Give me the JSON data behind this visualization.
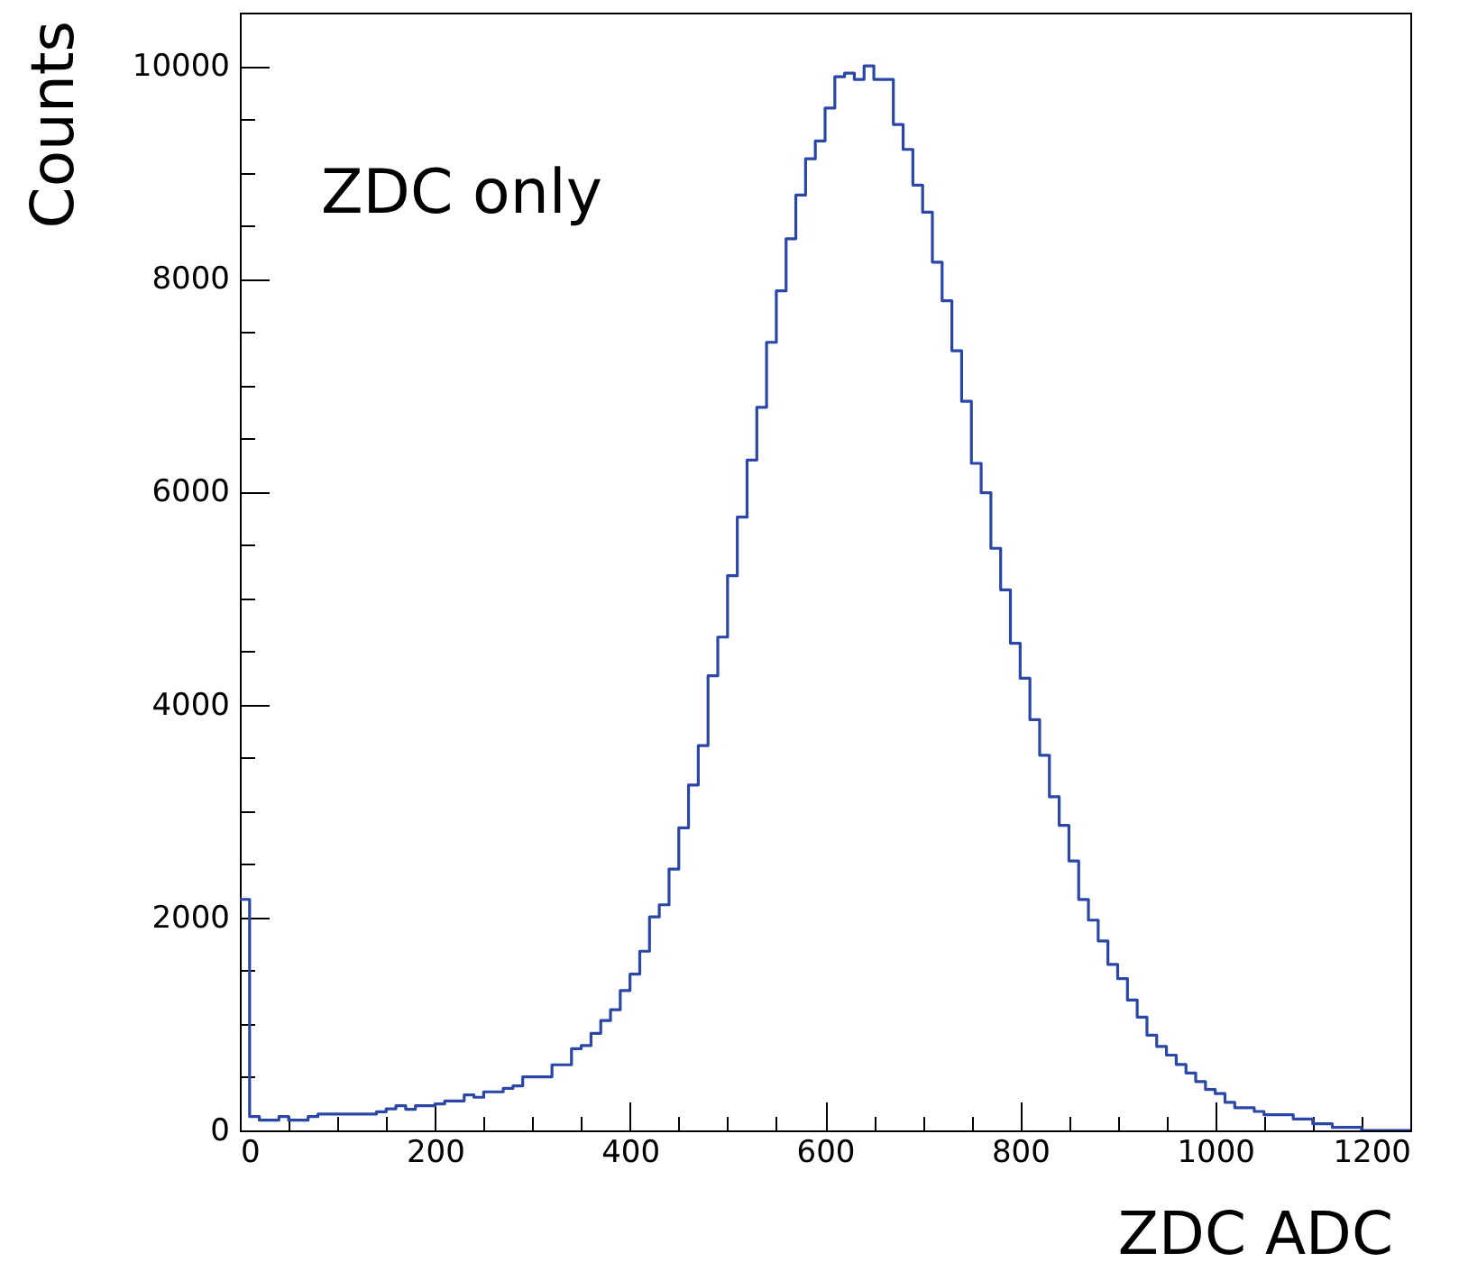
{
  "chart_data": {
    "type": "histogram",
    "xlabel": "ZDC ADC",
    "ylabel": "Counts",
    "annotations": [
      "ZDC only"
    ],
    "color": "#2a47a8",
    "bins": [
      0,
      10,
      20,
      30,
      40,
      50,
      60,
      70,
      80,
      90,
      100,
      110,
      120,
      130,
      140,
      150,
      160,
      170,
      180,
      190,
      200,
      210,
      220,
      230,
      240,
      250,
      260,
      270,
      280,
      290,
      300,
      310,
      320,
      330,
      340,
      350,
      360,
      370,
      380,
      390,
      400,
      410,
      420,
      430,
      440,
      450,
      460,
      470,
      480,
      490,
      500,
      510,
      520,
      530,
      540,
      550,
      560,
      570,
      580,
      590,
      600,
      610,
      620,
      630,
      640,
      650,
      660,
      670,
      680,
      690,
      700,
      710,
      720,
      730,
      740,
      750,
      760,
      770,
      780,
      790,
      800,
      810,
      820,
      830,
      840,
      850,
      860,
      870,
      880,
      890,
      900,
      910,
      920,
      930,
      940,
      950,
      960,
      970,
      980,
      990,
      1000,
      1010,
      1020,
      1030,
      1040,
      1050,
      1060,
      1070,
      1080,
      1090,
      1100,
      1110,
      1120,
      1130,
      1140,
      1150,
      1160,
      1170,
      1180,
      1190,
      1200
    ],
    "values": [
      2170,
      130,
      96,
      96,
      130,
      96,
      96,
      130,
      153,
      153,
      153,
      153,
      153,
      153,
      175,
      203,
      232,
      198,
      232,
      232,
      249,
      277,
      277,
      333,
      311,
      362,
      362,
      395,
      418,
      503,
      503,
      503,
      616,
      616,
      768,
      797,
      912,
      1032,
      1133,
      1314,
      1468,
      1683,
      2005,
      2119,
      2454,
      2842,
      3245,
      3615,
      4271,
      4634,
      5210,
      5761,
      6297,
      6793,
      7403,
      7886,
      8376,
      8786,
      9127,
      9295,
      9603,
      9898,
      9932,
      9873,
      10000,
      9873,
      9873,
      9449,
      9215,
      8880,
      8625,
      8156,
      7793,
      7324,
      6849,
      6266,
      5990,
      5468,
      5078,
      4576,
      4247,
      3858,
      3524,
      3134,
      2866,
      2531,
      2169,
      1975,
      1780,
      1559,
      1425,
      1224,
      1063,
      895,
      788,
      707,
      620,
      539,
      459,
      385,
      346,
      264,
      212,
      212,
      178,
      147,
      147,
      147,
      107,
      107,
      62,
      62,
      28,
      28,
      28,
      0,
      0,
      0,
      0,
      0
    ],
    "xlim": [
      0,
      1200
    ],
    "ylim": [
      0,
      10500
    ],
    "xticks": [
      0,
      {
        "value": 50,
        "label": null
      },
      {
        "value": 100,
        "label": null
      },
      {
        "value": 150,
        "label": null
      },
      200,
      {
        "value": 250,
        "label": null
      },
      {
        "value": 300,
        "label": null
      },
      {
        "value": 350,
        "label": null
      },
      400,
      {
        "value": 450,
        "label": null
      },
      {
        "value": 500,
        "label": null
      },
      {
        "value": 550,
        "label": null
      },
      600,
      {
        "value": 650,
        "label": null
      },
      {
        "value": 700,
        "label": null
      },
      {
        "value": 750,
        "label": null
      },
      800,
      {
        "value": 850,
        "label": null
      },
      {
        "value": 900,
        "label": null
      },
      {
        "value": 950,
        "label": null
      },
      1000,
      {
        "value": 1050,
        "label": null
      },
      {
        "value": 1100,
        "label": null
      },
      {
        "value": 1150,
        "label": null
      },
      1200
    ],
    "yticks": [
      0,
      {
        "value": 500,
        "label": null
      },
      {
        "value": 1000,
        "label": null
      },
      {
        "value": 1500,
        "label": null
      },
      2000,
      {
        "value": 2500,
        "label": null
      },
      {
        "value": 3000,
        "label": null
      },
      {
        "value": 3500,
        "label": null
      },
      4000,
      {
        "value": 4500,
        "label": null
      },
      {
        "value": 5000,
        "label": null
      },
      {
        "value": 5500,
        "label": null
      },
      6000,
      {
        "value": 6500,
        "label": null
      },
      {
        "value": 7000,
        "label": null
      },
      {
        "value": 7500,
        "label": null
      },
      8000,
      {
        "value": 8500,
        "label": null
      },
      {
        "value": 9000,
        "label": null
      },
      {
        "value": 9500,
        "label": null
      },
      10000,
      {
        "value": 10500,
        "label": null
      }
    ]
  }
}
